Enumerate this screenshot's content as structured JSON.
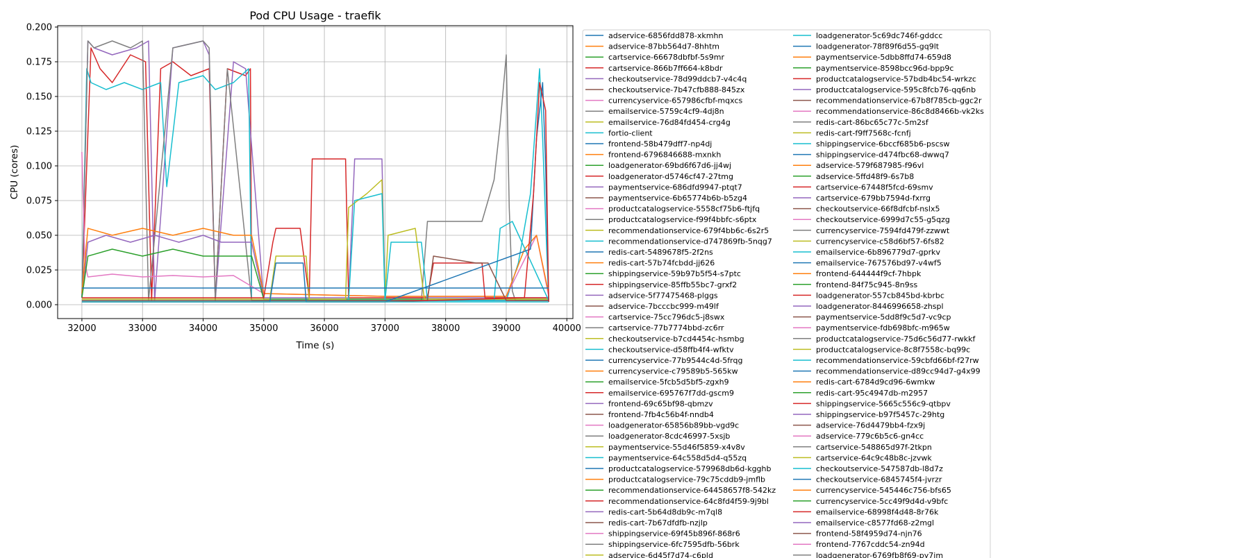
{
  "chart_data": {
    "type": "line",
    "title": "Pod CPU Usage - traefik",
    "xlabel": "Time (s)",
    "ylabel": "CPU (cores)",
    "xlim": [
      31600,
      40100
    ],
    "ylim": [
      -0.01,
      0.201
    ],
    "x_ticks": [
      32000,
      33000,
      34000,
      35000,
      36000,
      37000,
      38000,
      39000,
      40000
    ],
    "x_tick_labels": [
      "32000",
      "33000",
      "34000",
      "35000",
      "36000",
      "37000",
      "38000",
      "39000",
      "40000"
    ],
    "y_ticks": [
      0.0,
      0.025,
      0.05,
      0.075,
      0.1,
      0.125,
      0.15,
      0.175,
      0.2
    ],
    "y_tick_labels": [
      "0.000",
      "0.025",
      "0.050",
      "0.075",
      "0.100",
      "0.125",
      "0.150",
      "0.175",
      "0.200"
    ],
    "grid": true,
    "legend_position": "outside-right",
    "palette": [
      "#1f77b4",
      "#ff7f0e",
      "#2ca02c",
      "#d62728",
      "#9467bd",
      "#8c564b",
      "#e377c2",
      "#7f7f7f",
      "#bcbd22",
      "#17becf"
    ],
    "legend_entries": [
      "adservice-6856fdd878-xkmhn",
      "adservice-87bb564d7-8hhtm",
      "cartservice-66678dbfbf-5s9mr",
      "cartservice-866b7ff664-k8bdr",
      "checkoutservice-78d99ddcb7-v4c4q",
      "checkoutservice-7b47cfb888-845zx",
      "currencyservice-657986cfbf-mqxcs",
      "emailservice-5759c4cf9-4dj8n",
      "emailservice-76d84fd454-crg4g",
      "fortio-client",
      "frontend-58b479dff7-np4dj",
      "frontend-6796846688-mxnkh",
      "loadgenerator-69bd6f67d6-jj4wj",
      "loadgenerator-d5746cf47-27tmg",
      "paymentservice-686dfd9947-ptqt7",
      "paymentservice-6b65774b6b-b5zg4",
      "productcatalogservice-5558cf75b6-ftjfq",
      "productcatalogservice-f99f4bbfc-s6ptx",
      "recommendationservice-679f4bb6c-6s2r5",
      "recommendationservice-d747869fb-5nqg7",
      "redis-cart-5489678f5-2f2ns",
      "redis-cart-57b74fcbdd-jj626",
      "shippingservice-59b97b5f54-s7ptc",
      "shippingservice-85ffb55bc7-grxf2",
      "adservice-5f77475468-plggs",
      "adservice-7bcccbc999-m49lf",
      "cartservice-75cc796dc5-j8swx",
      "cartservice-77b7774bbd-zc6rr",
      "checkoutservice-b7cd4454c-hsmbg",
      "checkoutservice-d58ffb4f4-wfktv",
      "currencyservice-77b9544c4d-5frqg",
      "currencyservice-c79589b5-565kw",
      "emailservice-5fcb5d5bf5-zgxh9",
      "emailservice-695767f7dd-gscm9",
      "frontend-69c65bf98-qbmzv",
      "frontend-7fb4c56b4f-nndb4",
      "loadgenerator-65856b89bb-vgd9c",
      "loadgenerator-8cdc46997-5xsjb",
      "paymentservice-55d46f5859-x4v8v",
      "paymentservice-64c558d5d4-q55zq",
      "productcatalogservice-579968db6d-kgghb",
      "productcatalogservice-79c75cddb9-jmflb",
      "recommendationservice-64458657f8-542kz",
      "recommendationservice-64c8fd4f59-9j9bl",
      "redis-cart-5b64d8db9c-m7ql8",
      "redis-cart-7b67dfdfb-nzjlp",
      "shippingservice-69f45b896f-868r6",
      "shippingservice-6fc7595dfb-56brk",
      "adservice-6d45f7d74-c6pld",
      "loadgenerator-5c69dc746f-gddcc",
      "loadgenerator-78f89f6d55-gq9lt",
      "paymentservice-5dbb8ffd74-659d8",
      "paymentservice-8598bcc96d-bpp9c",
      "productcatalogservice-57bdb4bc54-wrkzc",
      "productcatalogservice-595c8fcb76-qq6nb",
      "recommendationservice-67b8f785cb-ggc2r",
      "recommendationservice-86c8d8466b-vk2ks",
      "redis-cart-86bc65c77c-5m2sf",
      "redis-cart-f9ff7568c-fcnfj",
      "shippingservice-6bccf685b6-pscsw",
      "shippingservice-d474fbc68-dwwq7",
      "adservice-579f687985-f96vl",
      "adservice-5ffd48f9-6s7b8",
      "cartservice-67448f5fcd-69smv",
      "cartservice-679bb7594d-fxrrg",
      "checkoutservice-66f8dfcbf-nslx5",
      "checkoutservice-6999d7c55-g5qzg",
      "currencyservice-7594fd479f-zzwwt",
      "currencyservice-c58d6bf57-6fs82",
      "emailservice-6b896779d7-gprkv",
      "emailservice-767576bd97-v4wf5",
      "frontend-644444f9cf-7hbpk",
      "frontend-84f75c945-8n9ss",
      "loadgenerator-557cb845bd-kbrbc",
      "loadgenerator-8446996658-zhspl",
      "paymentservice-5dd8f9c5d7-vc9cp",
      "paymentservice-fdb698bfc-m965w",
      "productcatalogservice-75d6c56d77-rwkkf",
      "productcatalogservice-8c8f7558c-bq99c",
      "recommendationservice-59cbfd66bf-f27rw",
      "recommendationservice-d89cc94d7-g4x99",
      "redis-cart-6784d9cd96-6wmkw",
      "redis-cart-95c4947db-m2957",
      "shippingservice-5665c556c9-qtbpv",
      "shippingservice-b97f5457c-29htg",
      "adservice-76d4479bb4-fzx9j",
      "adservice-779c6b5c6-gn4cc",
      "cartservice-548865d97f-2tkpn",
      "cartservice-64c9c48b8c-jzvwk",
      "checkoutservice-547587db-l8d7z",
      "checkoutservice-6845745f4-jvrzr",
      "currencyservice-545446c756-bfs65",
      "currencyservice-5cc49f9d4d-v9bfc",
      "emailservice-68998f4d48-8r76k",
      "emailservice-c8577fd68-z2mgl",
      "frontend-58f4959d74-njn76",
      "frontend-7767cddc54-zn94d",
      "loadgenerator-6769fb8f69-py7im"
    ],
    "series": [
      {
        "name": "cartservice-866b7ff664-k8bdr",
        "color": "#d62728",
        "x": [
          32000,
          32080,
          32150,
          32300,
          32500,
          32800,
          33050,
          33150,
          33300,
          33500,
          33800,
          34100,
          34200,
          34400,
          34700,
          34780,
          34800,
          37000,
          39700
        ],
        "y": [
          0.005,
          0.1,
          0.185,
          0.17,
          0.16,
          0.18,
          0.175,
          0.003,
          0.17,
          0.175,
          0.165,
          0.17,
          0.003,
          0.17,
          0.165,
          0.17,
          0.003,
          0.003,
          0.003
        ]
      },
      {
        "name": "checkoutservice-78d99ddcb7-v4c4q",
        "color": "#9467bd",
        "x": [
          32000,
          32100,
          32200,
          32500,
          32900,
          33100,
          33200,
          33500,
          34000,
          34100,
          34200,
          34500,
          34700,
          35000,
          37000,
          39700
        ],
        "y": [
          0.005,
          0.19,
          0.185,
          0.18,
          0.185,
          0.19,
          0.003,
          0.185,
          0.19,
          0.18,
          0.003,
          0.175,
          0.17,
          0.003,
          0.003,
          0.003
        ]
      },
      {
        "name": "recommendationservice-d747869fb-5nqg7",
        "color": "#17becf",
        "x": [
          32000,
          32080,
          32150,
          32400,
          32700,
          33000,
          33300,
          33400,
          33600,
          34000,
          34200,
          34500,
          34750,
          34800,
          36800,
          39000,
          39200,
          39400,
          39550,
          39600,
          39650,
          39700
        ],
        "y": [
          0.005,
          0.17,
          0.16,
          0.155,
          0.16,
          0.155,
          0.16,
          0.085,
          0.16,
          0.165,
          0.155,
          0.16,
          0.17,
          0.003,
          0.003,
          0.003,
          0.03,
          0.08,
          0.17,
          0.12,
          0.06,
          0.003
        ]
      },
      {
        "name": "productcatalogservice-f99f4bbfc-s6ptx",
        "color": "#7f7f7f",
        "x": [
          32000,
          32100,
          32200,
          32500,
          32800,
          33000,
          33100,
          33500,
          34000,
          34100,
          34200,
          34400,
          34800,
          37000,
          37600,
          37700,
          38300,
          38600,
          38800,
          38900,
          39000,
          39050,
          39100,
          39150,
          39700
        ],
        "y": [
          0.005,
          0.19,
          0.185,
          0.19,
          0.185,
          0.19,
          0.003,
          0.185,
          0.19,
          0.185,
          0.003,
          0.17,
          0.003,
          0.003,
          0.003,
          0.06,
          0.06,
          0.06,
          0.09,
          0.13,
          0.18,
          0.07,
          0.01,
          0.003,
          0.003
        ]
      },
      {
        "name": "productcatalogservice-5558cf75b6-ftjfq",
        "color": "#e377c2",
        "x": [
          32000,
          32050,
          32100,
          32500,
          33000,
          33500,
          34000,
          34500,
          35000,
          37000,
          39000,
          39500,
          39700
        ],
        "y": [
          0.11,
          0.03,
          0.02,
          0.022,
          0.02,
          0.021,
          0.02,
          0.021,
          0.008,
          0.006,
          0.006,
          0.05,
          0.006
        ]
      },
      {
        "name": "cartservice-75cc796dc5-j8swx",
        "color": "#9467bd",
        "x": [
          32000,
          32100,
          32400,
          32800,
          33200,
          33600,
          34000,
          34300,
          34800,
          35000,
          36400,
          36500,
          36950,
          37000,
          39700
        ],
        "y": [
          0.005,
          0.045,
          0.05,
          0.045,
          0.05,
          0.045,
          0.05,
          0.045,
          0.045,
          0.005,
          0.005,
          0.105,
          0.105,
          0.005,
          0.005
        ]
      },
      {
        "name": "adservice-87bb564d7-8hhtm",
        "color": "#ff7f0e",
        "x": [
          32000,
          32100,
          32500,
          33000,
          33500,
          34000,
          34500,
          34800,
          35000,
          37000,
          39000,
          39300,
          39500,
          39700
        ],
        "y": [
          0.008,
          0.055,
          0.05,
          0.055,
          0.05,
          0.055,
          0.05,
          0.05,
          0.008,
          0.006,
          0.006,
          0.04,
          0.05,
          0.008
        ]
      },
      {
        "name": "cartservice-66678dbfbf-5s9mr",
        "color": "#2ca02c",
        "x": [
          32000,
          32100,
          32500,
          33000,
          33500,
          34000,
          34800,
          35000,
          37000,
          39700
        ],
        "y": [
          0.005,
          0.035,
          0.04,
          0.035,
          0.04,
          0.035,
          0.035,
          0.004,
          0.004,
          0.004
        ]
      },
      {
        "name": "loadgenerator-d5746cf47-27tmg",
        "color": "#d62728",
        "x": [
          32000,
          35000,
          35150,
          35200,
          35600,
          35750,
          35800,
          36350,
          36400,
          37000,
          37700,
          37800,
          38600,
          38650,
          39700
        ],
        "y": [
          0.005,
          0.005,
          0.045,
          0.055,
          0.055,
          0.005,
          0.105,
          0.105,
          0.005,
          0.005,
          0.005,
          0.03,
          0.03,
          0.005,
          0.005
        ]
      },
      {
        "name": "emailservice-76d84fd454-crg4g",
        "color": "#bcbd22",
        "x": [
          32000,
          35100,
          35200,
          35700,
          35750,
          36350,
          36400,
          36700,
          36950,
          37000,
          37050,
          37500,
          37650,
          39700
        ],
        "y": [
          0.004,
          0.004,
          0.035,
          0.035,
          0.004,
          0.004,
          0.07,
          0.08,
          0.09,
          0.004,
          0.05,
          0.055,
          0.004,
          0.004
        ]
      },
      {
        "name": "recommendationservice-679f4bb6c-6s2r5",
        "color": "#17becf",
        "x": [
          32000,
          36400,
          36500,
          36950,
          37000,
          37100,
          37600,
          37700,
          38800,
          38900,
          39100,
          39700
        ],
        "y": [
          0.003,
          0.003,
          0.075,
          0.08,
          0.003,
          0.045,
          0.045,
          0.003,
          0.003,
          0.055,
          0.06,
          0.003
        ]
      },
      {
        "name": "shippingservice-85ffb55bc7-grxf2",
        "color": "#8c564b",
        "x": [
          32000,
          37000,
          37700,
          37800,
          38500,
          38700,
          39000,
          39700
        ],
        "y": [
          0.003,
          0.003,
          0.003,
          0.035,
          0.03,
          0.03,
          0.003,
          0.003
        ]
      },
      {
        "name": "frontend-58b479dff7-np4dj",
        "color": "#1f77b4",
        "x": [
          32000,
          35100,
          35200,
          35650,
          35700,
          37000,
          39400,
          39500,
          39600,
          39650,
          39700
        ],
        "y": [
          0.002,
          0.002,
          0.03,
          0.03,
          0.002,
          0.002,
          0.04,
          0.12,
          0.16,
          0.1,
          0.002
        ]
      },
      {
        "name": "emailservice-695767f7dd-gscm9",
        "color": "#d62728",
        "x": [
          32000,
          37000,
          39300,
          39450,
          39550,
          39650,
          39700
        ],
        "y": [
          0.002,
          0.002,
          0.005,
          0.08,
          0.16,
          0.14,
          0.002
        ]
      },
      {
        "name": "redis-cart-5489678f5-2f2ns",
        "color": "#1f77b4",
        "x": [
          32000,
          34000,
          36000,
          38000,
          39700
        ],
        "y": [
          0.012,
          0.012,
          0.012,
          0.012,
          0.012
        ]
      },
      {
        "name": "fortio-client",
        "color": "#17becf",
        "x": [
          32000,
          34000,
          36000,
          38000,
          39700
        ],
        "y": [
          0.002,
          0.002,
          0.002,
          0.002,
          0.002
        ]
      }
    ]
  }
}
